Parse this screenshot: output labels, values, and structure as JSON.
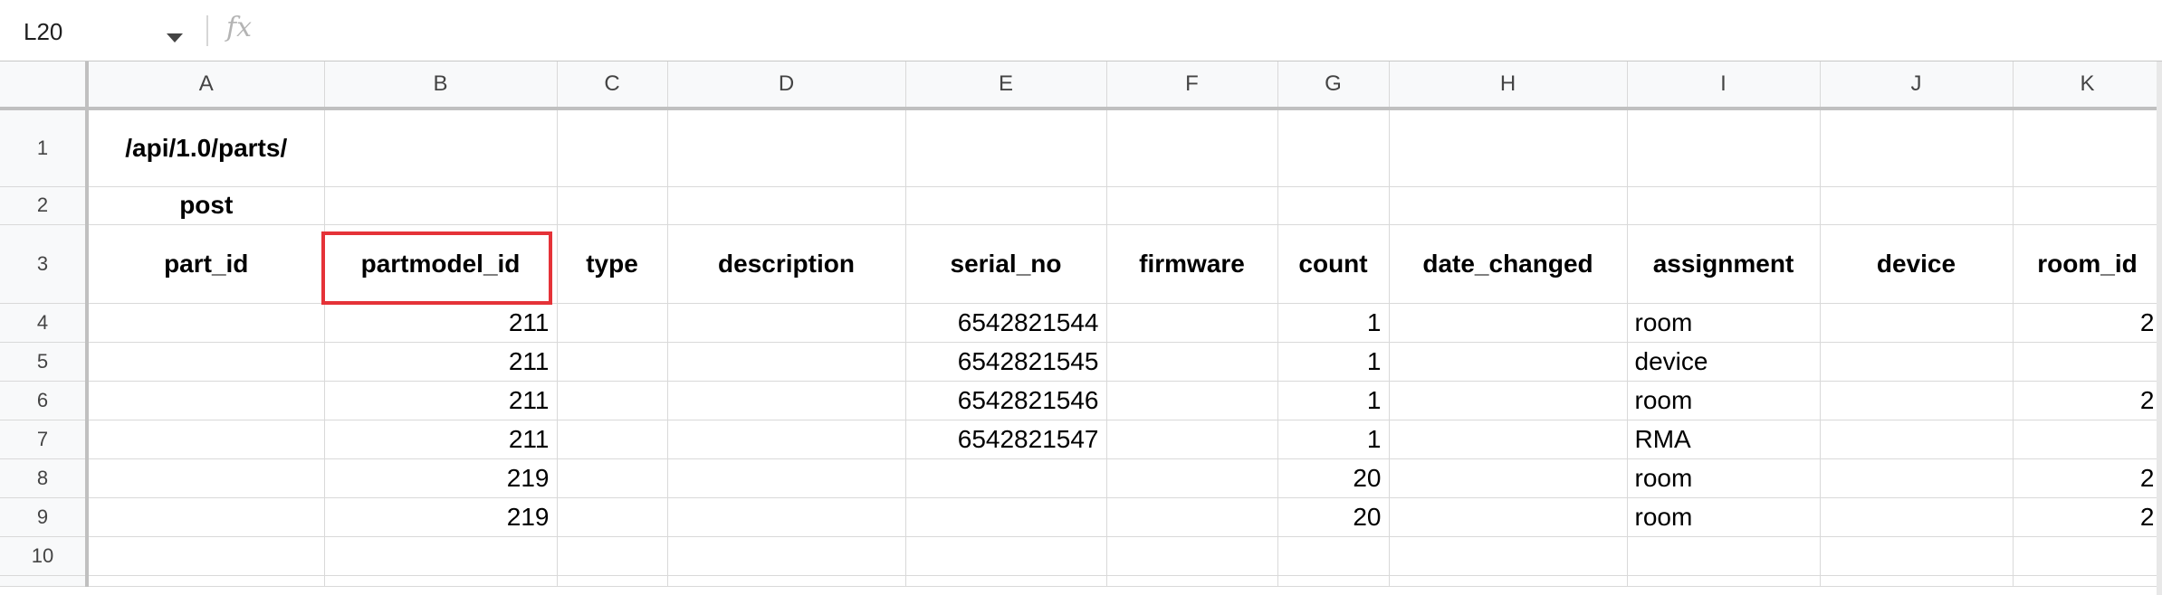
{
  "formula_bar": {
    "cell_reference": "L20",
    "fx_label": "fx",
    "formula_value": ""
  },
  "columns": [
    "A",
    "B",
    "C",
    "D",
    "E",
    "F",
    "G",
    "H",
    "I",
    "J",
    "K"
  ],
  "row_numbers": [
    "1",
    "2",
    "3",
    "4",
    "5",
    "6",
    "7",
    "8",
    "9",
    "10"
  ],
  "rows": [
    [
      "/api/1.0/parts/",
      "",
      "",
      "",
      "",
      "",
      "",
      "",
      "",
      "",
      ""
    ],
    [
      "post",
      "",
      "",
      "",
      "",
      "",
      "",
      "",
      "",
      "",
      ""
    ],
    [
      "part_id",
      "partmodel_id",
      "type",
      "description",
      "serial_no",
      "firmware",
      "count",
      "date_changed",
      "assignment",
      "device",
      "room_id"
    ],
    [
      "",
      "211",
      "",
      "",
      "6542821544",
      "",
      "1",
      "",
      "room",
      "",
      "2"
    ],
    [
      "",
      "211",
      "",
      "",
      "6542821545",
      "",
      "1",
      "",
      "device",
      "",
      ""
    ],
    [
      "",
      "211",
      "",
      "",
      "6542821546",
      "",
      "1",
      "",
      "room",
      "",
      "2"
    ],
    [
      "",
      "211",
      "",
      "",
      "6542821547",
      "",
      "1",
      "",
      "RMA",
      "",
      ""
    ],
    [
      "",
      "219",
      "",
      "",
      "",
      "",
      "20",
      "",
      "room",
      "",
      "2"
    ],
    [
      "",
      "219",
      "",
      "",
      "",
      "",
      "20",
      "",
      "room",
      "",
      "2"
    ],
    [
      "",
      "",
      "",
      "",
      "",
      "",
      "",
      "",
      "",
      "",
      ""
    ]
  ],
  "highlight_color": "#e53238"
}
